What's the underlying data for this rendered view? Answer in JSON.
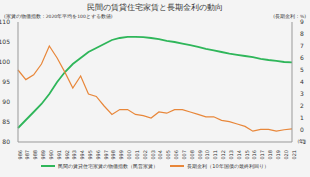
{
  "chart_data": {
    "type": "line",
    "title": "民間の賃貸住宅家賃と長期金利の動向",
    "y_label": "(家賃の物価指数：2020年平均を100とする数値)",
    "y2_label": "(長期金利：%)",
    "x_label": "(年)",
    "categories": [
      "1986",
      "1987",
      "1988",
      "1989",
      "1990",
      "1991",
      "1992",
      "1993",
      "1994",
      "1995",
      "1996",
      "1997",
      "1998",
      "1999",
      "2000",
      "2001",
      "2002",
      "2003",
      "2004",
      "2005",
      "2006",
      "2007",
      "2008",
      "2009",
      "2010",
      "2011",
      "2012",
      "2013",
      "2014",
      "2015",
      "2016",
      "2017",
      "2018",
      "2019",
      "2020",
      "2021"
    ],
    "series": [
      {
        "name": "民間の賃貸住宅家賃の物価指数（民営家賃）",
        "color": "#2fb65a",
        "values": [
          83.5,
          85.5,
          87.5,
          89.5,
          92,
          95,
          97.5,
          99.5,
          101,
          102.5,
          103.5,
          104.5,
          105.5,
          106,
          106.3,
          106.3,
          106.2,
          106,
          105.7,
          105.3,
          105,
          104.6,
          104.2,
          103.8,
          103.3,
          102.9,
          102.5,
          102.1,
          101.8,
          101.5,
          101.2,
          100.8,
          100.5,
          100.3,
          100,
          99.9
        ]
      },
      {
        "name": "長期金利（10年国債の最終利回り）",
        "color": "#e8873a",
        "axis": "y2",
        "values": [
          5.0,
          4.2,
          4.6,
          5.5,
          7.0,
          6.0,
          4.8,
          3.5,
          4.5,
          3.0,
          2.8,
          2.0,
          1.3,
          1.7,
          1.7,
          1.3,
          1.2,
          1.0,
          1.5,
          1.4,
          1.7,
          1.7,
          1.5,
          1.3,
          1.1,
          1.1,
          0.8,
          0.7,
          0.5,
          0.3,
          -0.1,
          0.05,
          0.05,
          -0.1,
          0.02,
          0.1
        ]
      }
    ],
    "ylim": [
      80,
      110
    ],
    "yticks": [
      80,
      85,
      90,
      95,
      100,
      105,
      110
    ],
    "y2lim": [
      -1,
      9
    ],
    "y2ticks": [
      -1,
      0,
      1,
      2,
      3,
      4,
      5,
      6,
      7,
      8,
      9
    ],
    "grid": false,
    "legend": "bottom"
  }
}
